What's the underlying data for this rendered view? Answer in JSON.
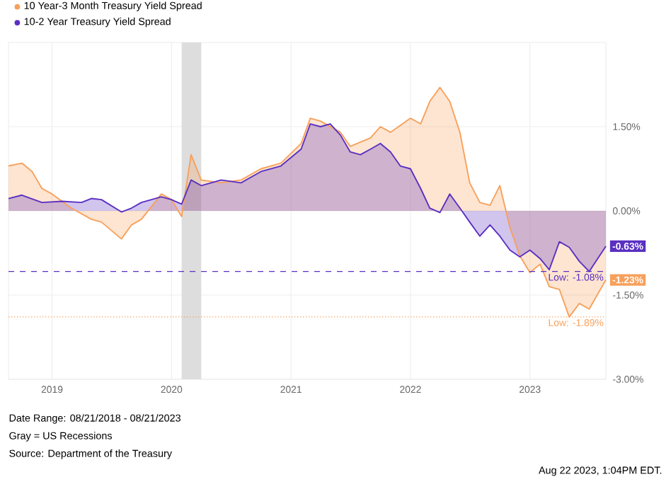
{
  "chart_data": {
    "type": "area",
    "legend": "top left",
    "grid": true,
    "xlim": [
      "2018-08-21",
      "2023-08-21"
    ],
    "xticks": [
      {
        "value": "2019-01-01",
        "label": "2019"
      },
      {
        "value": "2020-01-01",
        "label": "2020"
      },
      {
        "value": "2021-01-01",
        "label": "2021"
      },
      {
        "value": "2022-01-01",
        "label": "2022"
      },
      {
        "value": "2023-01-01",
        "label": "2023"
      }
    ],
    "ylim": [
      -3,
      3
    ],
    "yticks": [
      {
        "value": -3,
        "label": "-3.00%"
      },
      {
        "value": -1.5,
        "label": "-1.50%"
      },
      {
        "value": 0,
        "label": "0.00%"
      },
      {
        "value": 1.5,
        "label": "1.50%"
      }
    ],
    "series": [
      {
        "name": "10 Year-3 Month Treasury Yield Spread",
        "color": "#f7a05b",
        "x": [
          "2018-08-21",
          "2018-10",
          "2018-11",
          "2018-12",
          "2019-01",
          "2019-03",
          "2019-05",
          "2019-06",
          "2019-08",
          "2019-09",
          "2019-10",
          "2019-12",
          "2020-01",
          "2020-02",
          "2020-03",
          "2020-04",
          "2020-06",
          "2020-08",
          "2020-10",
          "2020-12",
          "2021-02",
          "2021-03",
          "2021-04",
          "2021-06",
          "2021-07",
          "2021-09",
          "2021-10",
          "2021-11",
          "2022-01",
          "2022-02",
          "2022-03",
          "2022-04",
          "2022-05",
          "2022-06",
          "2022-07",
          "2022-08",
          "2022-09",
          "2022-10",
          "2022-11",
          "2022-12",
          "2023-01",
          "2023-02",
          "2023-03",
          "2023-04",
          "2023-05",
          "2023-06",
          "2023-07",
          "2023-08-21"
        ],
        "values": [
          0.8,
          0.85,
          0.7,
          0.4,
          0.3,
          0.05,
          -0.15,
          -0.2,
          -0.5,
          -0.25,
          -0.15,
          0.3,
          0.2,
          -0.1,
          1.0,
          0.55,
          0.5,
          0.55,
          0.75,
          0.85,
          1.2,
          1.65,
          1.6,
          1.4,
          1.15,
          1.3,
          1.5,
          1.4,
          1.65,
          1.55,
          1.95,
          2.2,
          1.95,
          1.4,
          0.5,
          0.15,
          0.1,
          0.45,
          -0.3,
          -0.8,
          -1.1,
          -0.95,
          -1.35,
          -1.4,
          -1.89,
          -1.65,
          -1.75,
          -1.23
        ],
        "value_labels": [
          null,
          null,
          null,
          null,
          null,
          null,
          null,
          null,
          null,
          null,
          null,
          null,
          null,
          null,
          null,
          null,
          null,
          null,
          null,
          null,
          null,
          null,
          null,
          null,
          null,
          null,
          null,
          null,
          null,
          null,
          null,
          null,
          null,
          null,
          null,
          null,
          null,
          null,
          null,
          null,
          null,
          null,
          null,
          null,
          null,
          null,
          null,
          "-1.23%"
        ]
      },
      {
        "name": "10-2 Year Treasury Yield Spread",
        "color": "#5a2fc2",
        "x": [
          "2018-08-21",
          "2018-10",
          "2018-12",
          "2019-02",
          "2019-04",
          "2019-05",
          "2019-06",
          "2019-08",
          "2019-09",
          "2019-10",
          "2019-12",
          "2020-01",
          "2020-02",
          "2020-03",
          "2020-04",
          "2020-06",
          "2020-08",
          "2020-10",
          "2020-12",
          "2021-02",
          "2021-03",
          "2021-04",
          "2021-05",
          "2021-06",
          "2021-07",
          "2021-08",
          "2021-09",
          "2021-10",
          "2021-11",
          "2021-12",
          "2022-01",
          "2022-02",
          "2022-03",
          "2022-04",
          "2022-05",
          "2022-06",
          "2022-07",
          "2022-08",
          "2022-09",
          "2022-10",
          "2022-11",
          "2022-12",
          "2023-01",
          "2023-02",
          "2023-03",
          "2023-04",
          "2023-05",
          "2023-06",
          "2023-07",
          "2023-08-21"
        ],
        "values": [
          0.22,
          0.28,
          0.15,
          0.17,
          0.15,
          0.22,
          0.2,
          -0.02,
          0.05,
          0.15,
          0.25,
          0.2,
          0.12,
          0.55,
          0.45,
          0.55,
          0.5,
          0.7,
          0.8,
          1.1,
          1.55,
          1.5,
          1.55,
          1.35,
          1.05,
          1.0,
          1.1,
          1.2,
          1.05,
          0.8,
          0.75,
          0.4,
          0.05,
          -0.03,
          0.3,
          0.05,
          -0.2,
          -0.45,
          -0.25,
          -0.45,
          -0.7,
          -0.82,
          -0.7,
          -0.85,
          -1.05,
          -0.55,
          -0.65,
          -0.9,
          -1.08,
          -0.63
        ],
        "value_labels": [
          null,
          null,
          null,
          null,
          null,
          null,
          null,
          null,
          null,
          null,
          null,
          null,
          null,
          null,
          null,
          null,
          null,
          null,
          null,
          null,
          null,
          null,
          null,
          null,
          null,
          null,
          null,
          null,
          null,
          null,
          null,
          null,
          null,
          null,
          null,
          null,
          null,
          null,
          null,
          null,
          null,
          null,
          null,
          null,
          null,
          null,
          null,
          null,
          null,
          "-0.63%"
        ]
      }
    ],
    "bands": [
      {
        "axis": "x",
        "from": "2020-02-01",
        "to": "2020-04-01",
        "color": "#dddddd"
      }
    ],
    "ref_lines": [
      {
        "axis": "y",
        "value": -1.08,
        "label": "Low: -1.08%",
        "color": "#5a2fc2",
        "line_style": "dashed"
      },
      {
        "axis": "y",
        "value": -1.89,
        "label": "Low: -1.89%",
        "color": "#f7a05b",
        "line_style": "dotted"
      }
    ],
    "annotations": [
      "Date Range: 08/21/2018 - 08/21/2023",
      "Gray = US Recessions",
      "Source: Department of the Treasury",
      "Aug 22 2023, 1:04PM EDT."
    ]
  }
}
